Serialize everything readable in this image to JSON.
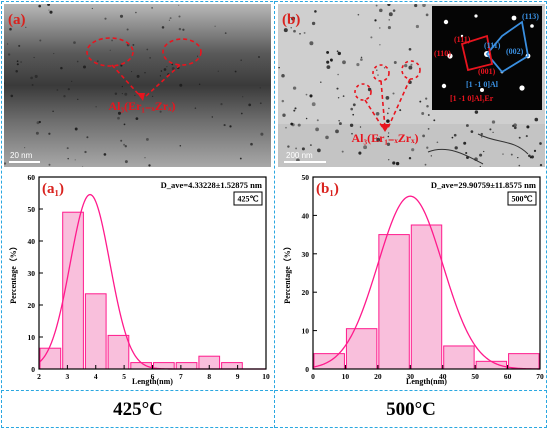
{
  "panels": {
    "a": {
      "label": "(a)",
      "precipitate": "Al₃(Er₁₋ₓZrₓ)",
      "scale_bar": "20 nm"
    },
    "b": {
      "label": "(b)",
      "precipitate": "Al₃(Er₁₋ₓZrₓ)",
      "scale_bar": "200 nm",
      "inset": {
        "spots": [
          "(113)",
          "(111)",
          "(002)",
          "(111)",
          "(110)",
          "(001)"
        ],
        "zone_al": "[1 -1 0]Al",
        "zone_al3er": "[1 -1 0]Al₃Er"
      }
    }
  },
  "bottom_labels": [
    "425°C",
    "500°C"
  ],
  "colors": {
    "accent": "#ff1a8c",
    "bar_fill": "#f9bfdc",
    "divider": "#2aa7e0",
    "annotation": "#e8141e",
    "inset_blue": "#3a8fe0"
  },
  "chart_data": [
    {
      "type": "bar",
      "panel": "(a₁)",
      "annotation": "D_ave=4.33228±1.52875 nm",
      "legend": "425℃",
      "xlabel": "Length(nm)",
      "ylabel": "Percentage（%）",
      "xlim": [
        2,
        10
      ],
      "ylim": [
        0,
        60
      ],
      "xticks": [
        2,
        3,
        4,
        5,
        6,
        7,
        8,
        9,
        10
      ],
      "yticks": [
        0,
        10,
        20,
        30,
        40,
        50,
        60
      ],
      "bin_width": 0.8,
      "bins": [
        2.4,
        3.2,
        4.0,
        4.8,
        5.6,
        6.4,
        7.2,
        8.0,
        8.8,
        9.6
      ],
      "values": [
        6.5,
        49,
        23.5,
        10.5,
        2,
        2,
        2,
        4,
        2,
        0
      ],
      "fit": {
        "type": "normal",
        "mean": 3.8,
        "sigma": 0.7,
        "peak": 54.5
      },
      "grid": false
    },
    {
      "type": "bar",
      "panel": "(b₁)",
      "annotation": "D_ave=29.90759±11.8575 nm",
      "legend": "500℃",
      "xlabel": "Length(nm)",
      "ylabel": "Percentage（%）",
      "xlim": [
        0,
        70
      ],
      "ylim": [
        0,
        50
      ],
      "xticks": [
        0,
        10,
        20,
        30,
        40,
        50,
        60,
        70
      ],
      "yticks": [
        0,
        10,
        20,
        30,
        40,
        50
      ],
      "bin_width": 10,
      "bins": [
        5,
        15,
        25,
        35,
        45,
        55,
        65
      ],
      "values": [
        4,
        10.5,
        35,
        37.5,
        6,
        2,
        4
      ],
      "fit": {
        "type": "normal",
        "mean": 30,
        "sigma": 10,
        "peak": 45
      },
      "grid": false
    }
  ]
}
